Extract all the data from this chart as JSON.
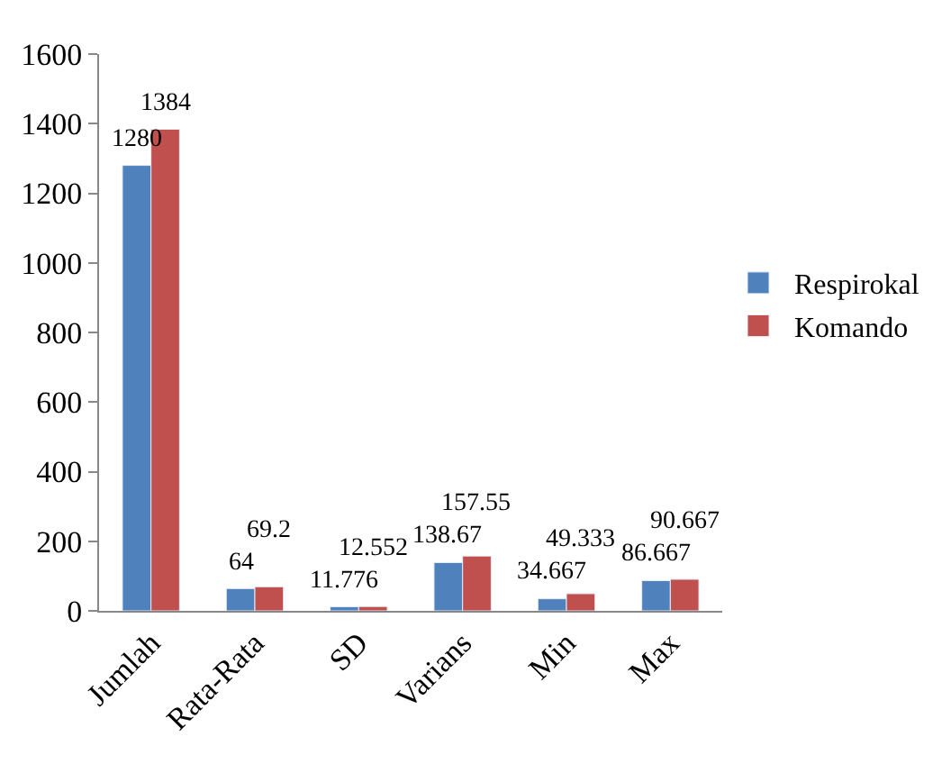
{
  "chart_data": {
    "type": "bar",
    "categories": [
      "Jumlah",
      "Rata-Rata",
      "SD",
      "Varians",
      "Min",
      "Max"
    ],
    "series": [
      {
        "name": "Respirokal",
        "color": "#4f81bd",
        "values": [
          1280,
          64,
          11.776,
          138.67,
          34.667,
          86.667
        ]
      },
      {
        "name": "Komando",
        "color": "#c0504d",
        "values": [
          1384,
          69.2,
          12.552,
          157.55,
          49.333,
          90.667
        ]
      }
    ],
    "ylim": [
      0,
      1600
    ],
    "yticks": [
      0,
      200,
      400,
      600,
      800,
      1000,
      1200,
      1400,
      1600
    ],
    "data_labels": true,
    "legend": "right"
  }
}
